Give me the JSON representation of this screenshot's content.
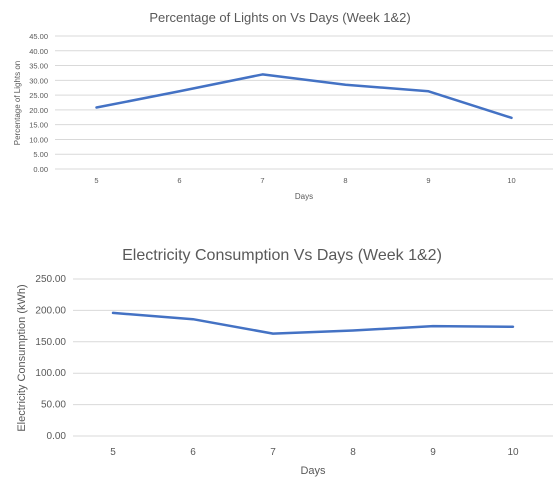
{
  "chart_data": [
    {
      "type": "line",
      "title": "Percentage of Lights on Vs Days (Week 1&2)",
      "xlabel": "Days",
      "ylabel": "Percentage of Lights on",
      "categories": [
        "5",
        "6",
        "7",
        "8",
        "9",
        "10"
      ],
      "series": [
        {
          "values": [
            20.8,
            26.3,
            32.0,
            28.5,
            26.3,
            17.3
          ],
          "color": "#4472c4"
        }
      ],
      "yticks": [
        "0.00",
        "5.00",
        "10.00",
        "15.00",
        "20.00",
        "25.00",
        "30.00",
        "35.00",
        "40.00",
        "45.00"
      ],
      "ylim": [
        0,
        45
      ],
      "grid": true
    },
    {
      "type": "line",
      "title": "Electricity Consumption Vs Days (Week 1&2)",
      "xlabel": "Days",
      "ylabel": "Electricity Consumption (kWh)",
      "categories": [
        "5",
        "6",
        "7",
        "8",
        "9",
        "10"
      ],
      "series": [
        {
          "values": [
            196,
            186,
            163,
            168,
            175,
            174
          ],
          "color": "#4472c4"
        }
      ],
      "yticks": [
        "0.00",
        "50.00",
        "100.00",
        "150.00",
        "200.00",
        "250.00"
      ],
      "ylim": [
        0,
        250
      ],
      "grid": true
    }
  ]
}
